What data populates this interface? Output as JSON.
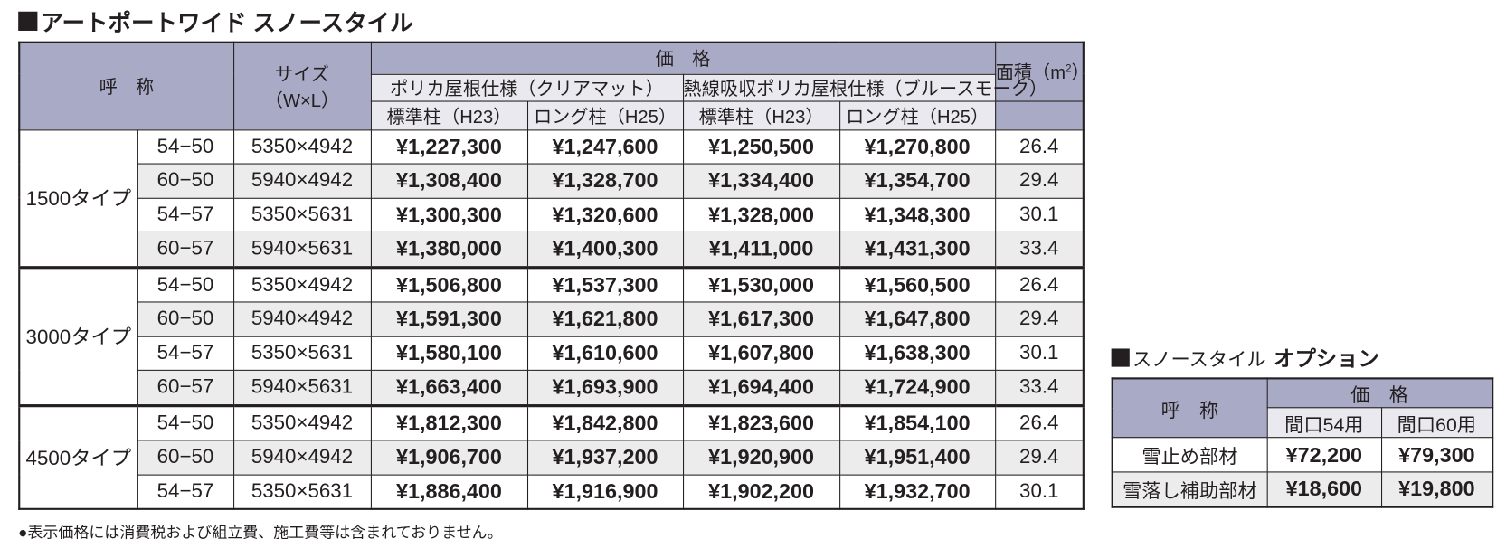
{
  "main": {
    "title": "アートポートワイド スノースタイル",
    "headers": {
      "name": "呼　称",
      "size": "サイズ\n（W×L）",
      "size_line1": "サイズ",
      "size_line2": "（W×L）",
      "price": "価　格",
      "spec1": "ポリカ屋根仕様（クリアマット）",
      "spec2": "熱線吸収ポリカ屋根仕様（ブルースモーク）",
      "area_label": "面積（m",
      "area_sup": "2",
      "area_close": "）",
      "post_std": "標準柱（H23）",
      "post_long": "ロング柱（H25）"
    },
    "groups": [
      {
        "type": "1500タイプ",
        "rows": [
          {
            "code": "54−50",
            "size": "5350×4942",
            "p1": "¥1,227,300",
            "p2": "¥1,247,600",
            "p3": "¥1,250,500",
            "p4": "¥1,270,800",
            "area": "26.4"
          },
          {
            "code": "60−50",
            "size": "5940×4942",
            "p1": "¥1,308,400",
            "p2": "¥1,328,700",
            "p3": "¥1,334,400",
            "p4": "¥1,354,700",
            "area": "29.4"
          },
          {
            "code": "54−57",
            "size": "5350×5631",
            "p1": "¥1,300,300",
            "p2": "¥1,320,600",
            "p3": "¥1,328,000",
            "p4": "¥1,348,300",
            "area": "30.1"
          },
          {
            "code": "60−57",
            "size": "5940×5631",
            "p1": "¥1,380,000",
            "p2": "¥1,400,300",
            "p3": "¥1,411,000",
            "p4": "¥1,431,300",
            "area": "33.4"
          }
        ]
      },
      {
        "type": "3000タイプ",
        "rows": [
          {
            "code": "54−50",
            "size": "5350×4942",
            "p1": "¥1,506,800",
            "p2": "¥1,537,300",
            "p3": "¥1,530,000",
            "p4": "¥1,560,500",
            "area": "26.4"
          },
          {
            "code": "60−50",
            "size": "5940×4942",
            "p1": "¥1,591,300",
            "p2": "¥1,621,800",
            "p3": "¥1,617,300",
            "p4": "¥1,647,800",
            "area": "29.4"
          },
          {
            "code": "54−57",
            "size": "5350×5631",
            "p1": "¥1,580,100",
            "p2": "¥1,610,600",
            "p3": "¥1,607,800",
            "p4": "¥1,638,300",
            "area": "30.1"
          },
          {
            "code": "60−57",
            "size": "5940×5631",
            "p1": "¥1,663,400",
            "p2": "¥1,693,900",
            "p3": "¥1,694,400",
            "p4": "¥1,724,900",
            "area": "33.4"
          }
        ]
      },
      {
        "type": "4500タイプ",
        "rows": [
          {
            "code": "54−50",
            "size": "5350×4942",
            "p1": "¥1,812,300",
            "p2": "¥1,842,800",
            "p3": "¥1,823,600",
            "p4": "¥1,854,100",
            "area": "26.4"
          },
          {
            "code": "60−50",
            "size": "5940×4942",
            "p1": "¥1,906,700",
            "p2": "¥1,937,200",
            "p3": "¥1,920,900",
            "p4": "¥1,951,400",
            "area": "29.4"
          },
          {
            "code": "54−57",
            "size": "5350×5631",
            "p1": "¥1,886,400",
            "p2": "¥1,916,900",
            "p3": "¥1,902,200",
            "p4": "¥1,932,700",
            "area": "30.1"
          }
        ]
      }
    ]
  },
  "options": {
    "title_prefix": "スノースタイル",
    "title_suffix": "オプション",
    "headers": {
      "name": "呼　称",
      "price": "価　格",
      "w54": "間口54用",
      "w60": "間口60用"
    },
    "rows": [
      {
        "name": "雪止め部材",
        "p54": "¥72,200",
        "p60": "¥79,300"
      },
      {
        "name": "雪落し補助部材",
        "p54": "¥18,600",
        "p60": "¥19,800"
      }
    ]
  },
  "footnote": "●表示価格には消費税および組立費、施工費等は含まれておりません。",
  "colors": {
    "header": "#a9aac6",
    "subheader": "#e9e9ef",
    "alt_row": "#ececec",
    "text": "#231f20"
  }
}
